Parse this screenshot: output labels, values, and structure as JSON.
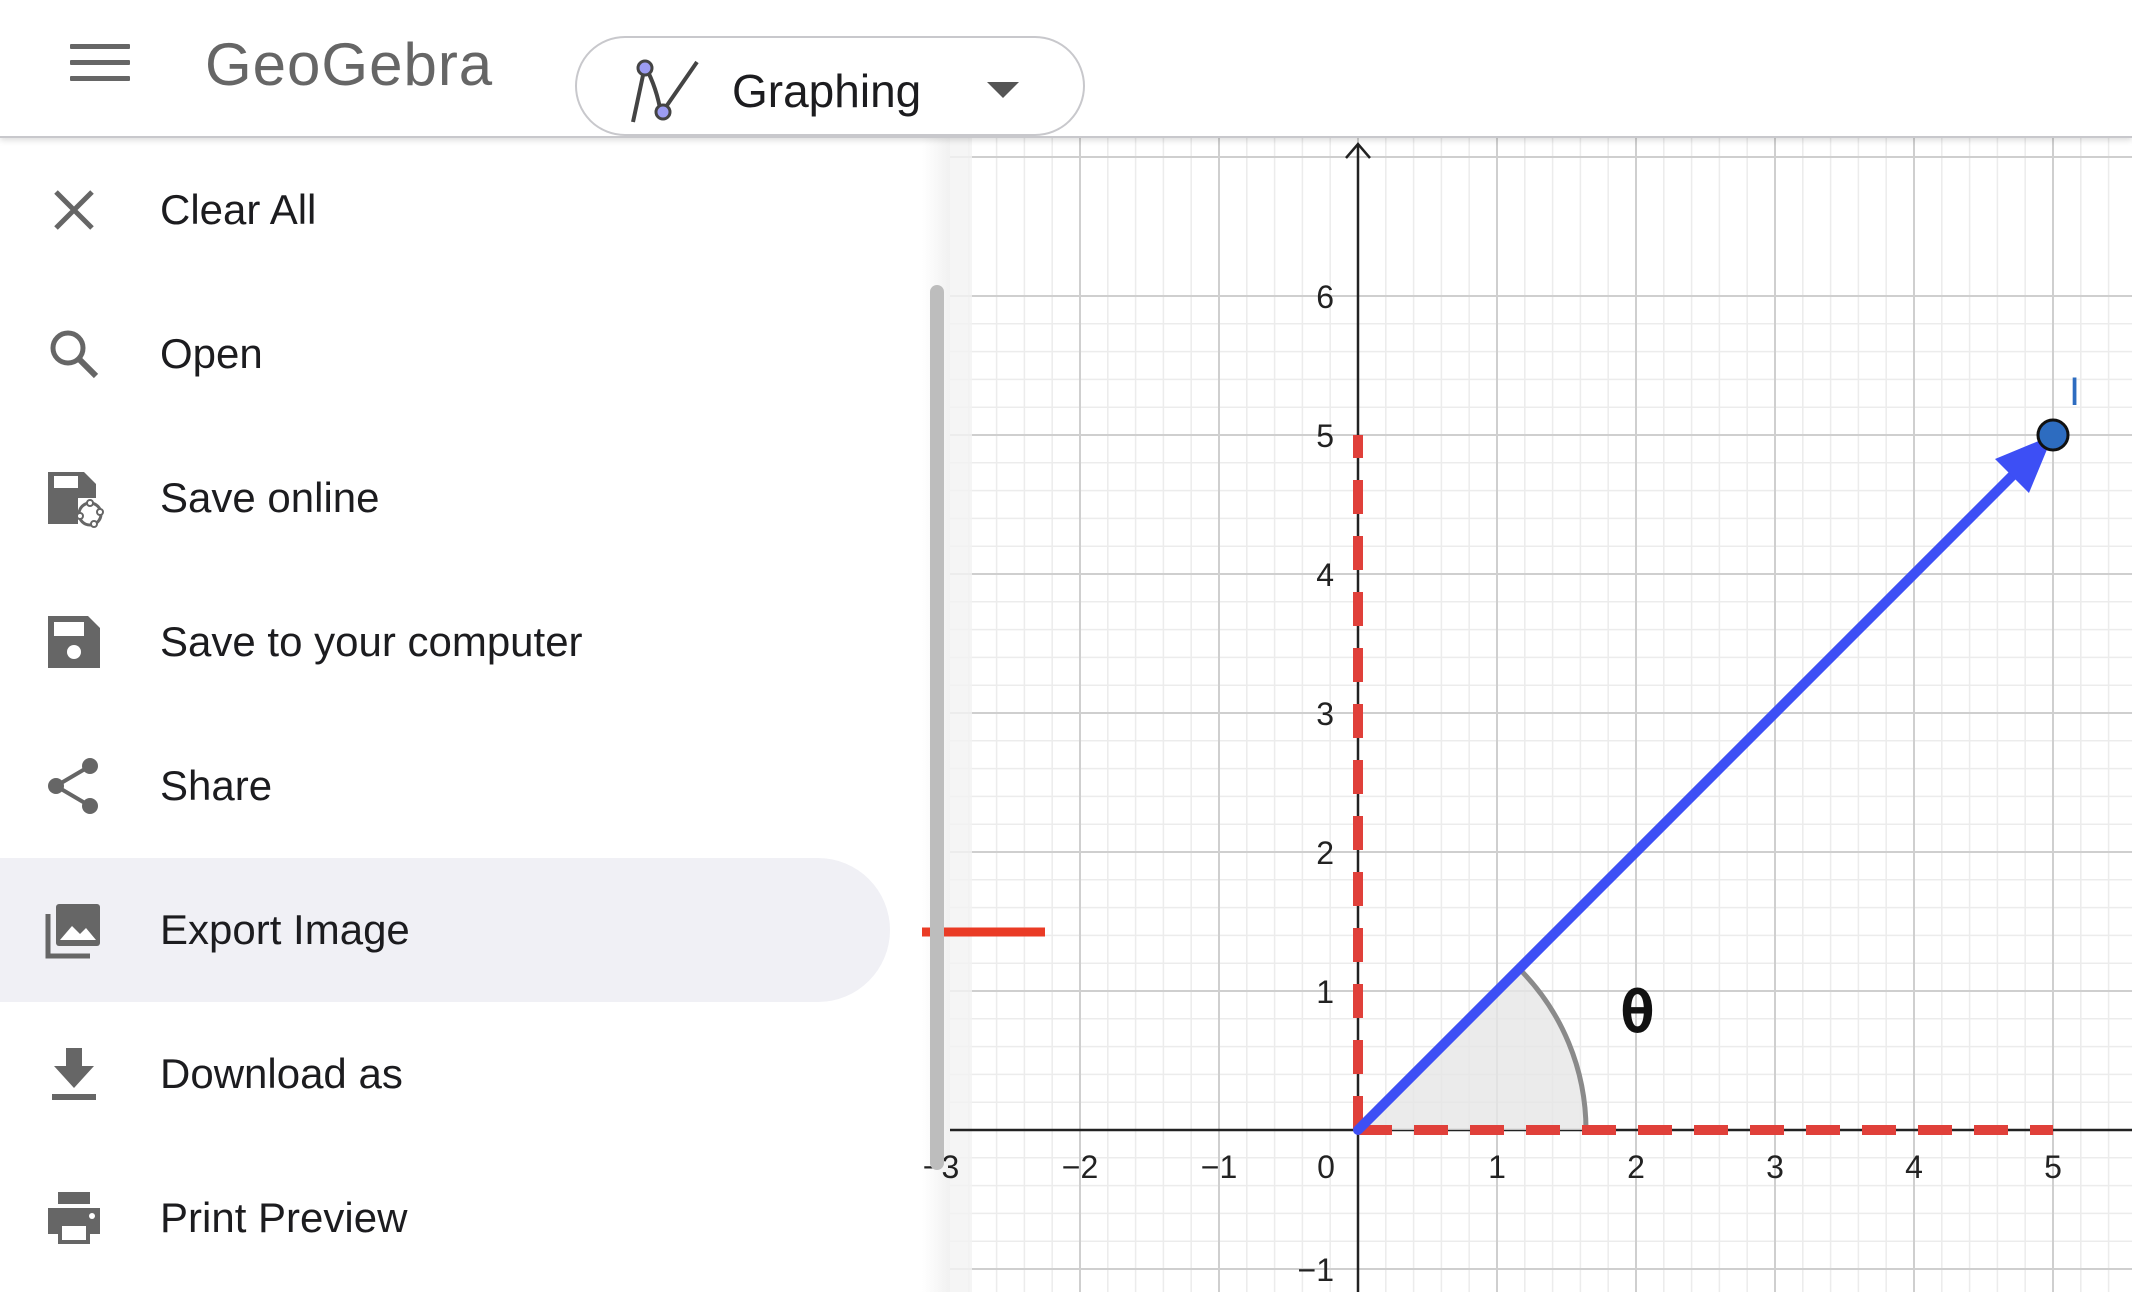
{
  "header": {
    "menu_icon": "hamburger-menu-icon",
    "logo_text": "GeoGebra",
    "app_picker": {
      "label": "Graphing",
      "icon": "graphing-app-icon",
      "caret_icon": "chevron-down-icon"
    }
  },
  "menu": {
    "items": [
      {
        "label": "Clear All",
        "icon": "close-icon"
      },
      {
        "label": "Open",
        "icon": "search-icon"
      },
      {
        "label": "Save online",
        "icon": "save-online-icon"
      },
      {
        "label": "Save to your computer",
        "icon": "save-icon"
      },
      {
        "label": "Share",
        "icon": "share-icon"
      },
      {
        "label": "Export Image",
        "icon": "image-export-icon",
        "active": true
      },
      {
        "label": "Download as",
        "icon": "download-icon"
      },
      {
        "label": "Print Preview",
        "icon": "print-icon"
      }
    ]
  },
  "graph": {
    "x_ticks": [
      "−3",
      "−2",
      "−1",
      "0",
      "1",
      "2",
      "3",
      "4",
      "5"
    ],
    "y_ticks": [
      "6",
      "5",
      "4",
      "3",
      "2",
      "1",
      "−1"
    ],
    "point_label": "I",
    "angle_label": "θ",
    "vector": {
      "from": [
        0,
        0
      ],
      "to": [
        5,
        5
      ]
    },
    "colors": {
      "vector": "#3d4ff5",
      "dashed": "#e0403a",
      "point_fill": "#2d6cc0",
      "arrow": "#ea3b25",
      "angle_fill": "#e6e6e6"
    }
  },
  "annotation": {
    "arrow_target": "Export Image",
    "arrow_color": "#ea3b25"
  }
}
